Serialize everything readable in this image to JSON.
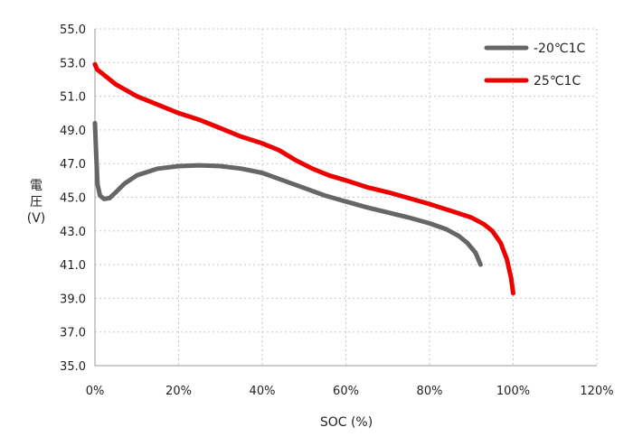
{
  "chart_data": {
    "type": "line",
    "xlabel": "SOC (%)",
    "ylabel_lines": [
      "電",
      "圧",
      "(V)"
    ],
    "xlim": [
      0,
      120
    ],
    "ylim": [
      35,
      55
    ],
    "x_ticks": [
      0,
      20,
      40,
      60,
      80,
      100,
      120
    ],
    "x_tick_labels": [
      "0%",
      "20%",
      "40%",
      "60%",
      "80%",
      "100%",
      "120%"
    ],
    "y_ticks": [
      35,
      37,
      39,
      41,
      43,
      45,
      47,
      49,
      51,
      53,
      55
    ],
    "y_tick_labels": [
      "35.0",
      "37.0",
      "39.0",
      "41.0",
      "43.0",
      "45.0",
      "47.0",
      "49.0",
      "51.0",
      "53.0",
      "55.0"
    ],
    "grid": "dotted",
    "legend_position": "top-right",
    "series": [
      {
        "name": "-20℃1C",
        "color": "#666666",
        "points": [
          [
            0,
            49.4
          ],
          [
            0.3,
            47.5
          ],
          [
            0.6,
            45.8
          ],
          [
            1.2,
            45.1
          ],
          [
            2.2,
            44.9
          ],
          [
            3.5,
            44.95
          ],
          [
            5,
            45.3
          ],
          [
            7,
            45.8
          ],
          [
            10,
            46.3
          ],
          [
            15,
            46.7
          ],
          [
            20,
            46.85
          ],
          [
            25,
            46.9
          ],
          [
            30,
            46.85
          ],
          [
            35,
            46.7
          ],
          [
            40,
            46.45
          ],
          [
            45,
            46.0
          ],
          [
            50,
            45.55
          ],
          [
            55,
            45.1
          ],
          [
            60,
            44.75
          ],
          [
            65,
            44.4
          ],
          [
            70,
            44.1
          ],
          [
            75,
            43.8
          ],
          [
            80,
            43.45
          ],
          [
            84,
            43.1
          ],
          [
            87,
            42.7
          ],
          [
            89,
            42.3
          ],
          [
            91,
            41.7
          ],
          [
            92.2,
            41.0
          ]
        ]
      },
      {
        "name": "25℃1C",
        "color": "#ee0000",
        "points": [
          [
            0,
            52.9
          ],
          [
            0.5,
            52.6
          ],
          [
            2,
            52.3
          ],
          [
            5,
            51.7
          ],
          [
            10,
            51.0
          ],
          [
            15,
            50.5
          ],
          [
            20,
            50.0
          ],
          [
            25,
            49.6
          ],
          [
            30,
            49.1
          ],
          [
            35,
            48.6
          ],
          [
            40,
            48.2
          ],
          [
            44,
            47.8
          ],
          [
            48,
            47.2
          ],
          [
            52,
            46.7
          ],
          [
            56,
            46.3
          ],
          [
            60,
            46.0
          ],
          [
            65,
            45.6
          ],
          [
            70,
            45.3
          ],
          [
            75,
            44.95
          ],
          [
            80,
            44.6
          ],
          [
            85,
            44.2
          ],
          [
            90,
            43.8
          ],
          [
            93,
            43.4
          ],
          [
            95,
            43.0
          ],
          [
            97,
            42.3
          ],
          [
            98.5,
            41.3
          ],
          [
            99.5,
            40.2
          ],
          [
            100,
            39.3
          ]
        ]
      }
    ]
  }
}
